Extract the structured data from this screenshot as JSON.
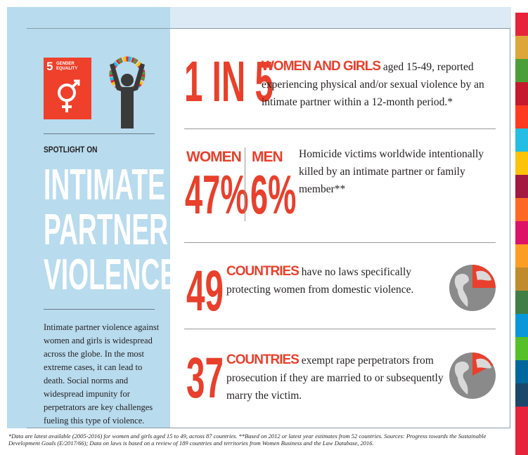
{
  "sidebar": {
    "goal_number": "5",
    "goal_name": "GENDER EQUALITY",
    "kicker": "SPOTLIGHT ON",
    "heading": "INTIMATE PARTNER VIOLENCE",
    "body": "Intimate partner violence against women and girls is widespread across the globe. In the most extreme cases, it can lead to death. Social norms and widespread impunity for perpetrators are key challenges fueling this type of violence."
  },
  "stats": [
    {
      "figure": "1 IN 5",
      "highlight": "WOMEN AND GIRLS",
      "text": "aged 15-49, reported experiencing physical and/or sexual violence by an intimate partner within a 12-month period.*"
    },
    {
      "women_label": "WOMEN",
      "women_figure": "47%",
      "men_label": "MEN",
      "men_figure": "6%",
      "text": "Homicide victims worldwide intentionally killed by an intimate partner or family member**"
    },
    {
      "figure": "49",
      "highlight": "COUNTRIES",
      "text": "have no laws specifically protecting women from domestic violence."
    },
    {
      "figure": "37",
      "highlight": "COUNTRIES",
      "text": "exempt rape perpetrators from prosecution if they are married to or subsequently marry the victim."
    }
  ],
  "footnote": "*Data are latest available (2005-2016) for women and girls aged 15 to 49, across 87 countries.  **Based on 2012 or latest year estimates from 52 countries. Sources: Progress towards the Sustainable Development Goals (E/2017/66); Data on laws is based on a review of 189 countries and territories from Women Business and the Law Database, 2016."
}
